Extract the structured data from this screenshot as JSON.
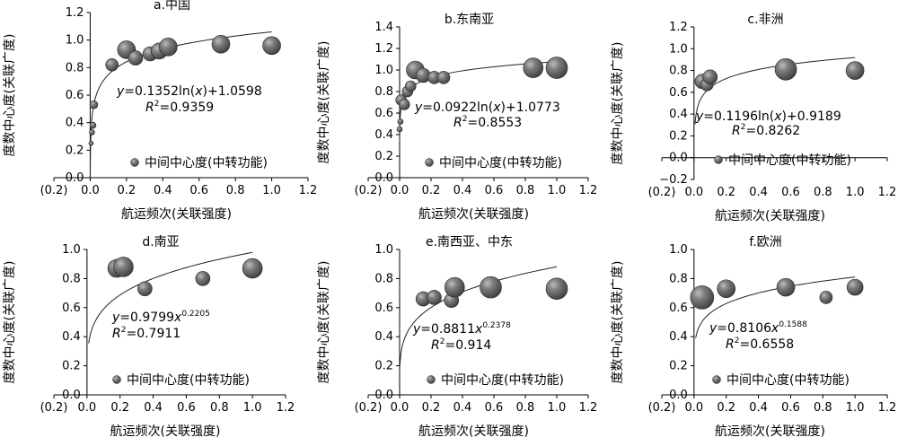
{
  "chart_data": [
    {
      "id": "a",
      "type": "scatter",
      "title": "a.中国",
      "xlabel": "航运频次(关联强度)",
      "ylabel": "度数中心度(关联广度)",
      "xticks": [
        "(0.2)",
        "0.0",
        "0.2",
        "0.4",
        "0.6",
        "0.8",
        "1.0",
        "1.2"
      ],
      "yticks": [
        "0.0",
        "0.2",
        "0.4",
        "0.6",
        "0.8",
        "1.0",
        "1.2"
      ],
      "xlim": [
        -0.2,
        1.2
      ],
      "ylim": [
        0,
        1.2
      ],
      "legend": "中间中心度(中转功能)",
      "equation": {
        "pre": "y",
        "mid": "=0.1352ln(",
        "var": "x",
        "post": ")+1.0598"
      },
      "r2": {
        "label": "R",
        "sup": "2",
        "value": "=0.9359"
      },
      "fit": {
        "kind": "log",
        "a": 0.1352,
        "b": 1.0598,
        "xmin": 0.0003,
        "xmax": 1.0
      },
      "points": [
        {
          "x": 0.0,
          "y": 0.0,
          "r": 1.2
        },
        {
          "x": 0.005,
          "y": 0.25,
          "r": 2.5
        },
        {
          "x": 0.01,
          "y": 0.33,
          "r": 3
        },
        {
          "x": 0.015,
          "y": 0.38,
          "r": 3.5
        },
        {
          "x": 0.02,
          "y": 0.53,
          "r": 4.5
        },
        {
          "x": 0.12,
          "y": 0.82,
          "r": 7
        },
        {
          "x": 0.2,
          "y": 0.93,
          "r": 10
        },
        {
          "x": 0.25,
          "y": 0.87,
          "r": 8
        },
        {
          "x": 0.33,
          "y": 0.9,
          "r": 8
        },
        {
          "x": 0.38,
          "y": 0.92,
          "r": 9
        },
        {
          "x": 0.43,
          "y": 0.95,
          "r": 10
        },
        {
          "x": 0.72,
          "y": 0.97,
          "r": 10
        },
        {
          "x": 1.0,
          "y": 0.96,
          "r": 10
        }
      ]
    },
    {
      "id": "b",
      "type": "scatter",
      "title": "b.东南亚",
      "xlabel": "航运频次(关联强度)",
      "ylabel": "度数中心度(关联广度)",
      "xticks": [
        "(0.2)",
        "0.0",
        "0.2",
        "0.4",
        "0.6",
        "0.8",
        "1.0",
        "1.2"
      ],
      "yticks": [
        "0.0",
        "0.2",
        "0.4",
        "0.6",
        "0.8",
        "1.0",
        "1.2",
        "1.4"
      ],
      "xlim": [
        -0.2,
        1.2
      ],
      "ylim": [
        0,
        1.4
      ],
      "legend": "中间中心度(中转功能)",
      "equation": {
        "pre": "y",
        "mid": "=0.0922ln(",
        "var": "x",
        "post": ")+1.0773"
      },
      "r2": {
        "label": "R",
        "sup": "2",
        "value": "=0.8553"
      },
      "fit": {
        "kind": "log",
        "a": 0.0922,
        "b": 1.0773,
        "xmin": 0.0003,
        "xmax": 1.0
      },
      "points": [
        {
          "x": 0.0,
          "y": 0.0,
          "r": 1.2
        },
        {
          "x": 0.0,
          "y": 0.45,
          "r": 3
        },
        {
          "x": 0.005,
          "y": 0.52,
          "r": 3
        },
        {
          "x": 0.01,
          "y": 0.72,
          "r": 6
        },
        {
          "x": 0.03,
          "y": 0.68,
          "r": 6
        },
        {
          "x": 0.05,
          "y": 0.8,
          "r": 6
        },
        {
          "x": 0.07,
          "y": 0.85,
          "r": 6
        },
        {
          "x": 0.1,
          "y": 1.0,
          "r": 10
        },
        {
          "x": 0.15,
          "y": 0.95,
          "r": 8
        },
        {
          "x": 0.22,
          "y": 0.93,
          "r": 7
        },
        {
          "x": 0.28,
          "y": 0.93,
          "r": 7
        },
        {
          "x": 0.85,
          "y": 1.02,
          "r": 11
        },
        {
          "x": 1.0,
          "y": 1.02,
          "r": 12
        }
      ]
    },
    {
      "id": "c",
      "type": "scatter",
      "title": "c.非洲",
      "xlabel": "航运频次(关联强度)",
      "ylabel": "度数中心度(关联广度)",
      "xticks": [
        "(0.2)",
        "0.0",
        "0.2",
        "0.4",
        "0.6",
        "0.8",
        "1.0",
        "1.2"
      ],
      "yticks": [
        "−0.2",
        "0.0",
        "0.2",
        "0.4",
        "0.6",
        "0.8",
        "1.0",
        "1.2"
      ],
      "xlim": [
        -0.2,
        1.2
      ],
      "ylim": [
        -0.2,
        1.2
      ],
      "legend": "中间中心度(中转功能)",
      "equation": {
        "pre": "y",
        "mid": "=0.1196ln(",
        "var": "x",
        "post": ")+0.9189"
      },
      "r2": {
        "label": "R",
        "sup": "2",
        "value": "=0.8262"
      },
      "fit": {
        "kind": "log",
        "a": 0.1196,
        "b": 0.9189,
        "xmin": 0.006,
        "xmax": 1.0
      },
      "points": [
        {
          "x": 0.05,
          "y": 0.7,
          "r": 8
        },
        {
          "x": 0.08,
          "y": 0.67,
          "r": 7
        },
        {
          "x": 0.1,
          "y": 0.74,
          "r": 8
        },
        {
          "x": 0.57,
          "y": 0.81,
          "r": 12
        },
        {
          "x": 1.0,
          "y": 0.8,
          "r": 10
        }
      ]
    },
    {
      "id": "d",
      "type": "scatter",
      "title": "d.南亚",
      "xlabel": "航运频次(关联强度)",
      "ylabel": "度数中心度(关联广度)",
      "xticks": [
        "(0.2)",
        "0.0",
        "0.2",
        "0.4",
        "0.6",
        "0.8",
        "1.0",
        "1.2"
      ],
      "yticks": [
        "0.0",
        "0.2",
        "0.4",
        "0.6",
        "0.8",
        "1.0"
      ],
      "xlim": [
        -0.2,
        1.2
      ],
      "ylim": [
        0,
        1.0
      ],
      "legend": "中间中心度(中转功能)",
      "equation": {
        "pre": "y",
        "mid": "=0.9799",
        "var": "x",
        "sup": "0.2205"
      },
      "r2": {
        "label": "R",
        "sup": "2",
        "value": "=0.7911"
      },
      "fit": {
        "kind": "power",
        "a": 0.9799,
        "b": 0.2205,
        "xmin": 0.01,
        "xmax": 1.0
      },
      "points": [
        {
          "x": 0.18,
          "y": 0.87,
          "r": 10
        },
        {
          "x": 0.22,
          "y": 0.88,
          "r": 11
        },
        {
          "x": 0.35,
          "y": 0.73,
          "r": 8
        },
        {
          "x": 0.7,
          "y": 0.8,
          "r": 8
        },
        {
          "x": 1.0,
          "y": 0.87,
          "r": 11
        }
      ]
    },
    {
      "id": "e",
      "type": "scatter",
      "title": "e.南西亚、中东",
      "xlabel": "航运频次(关联强度)",
      "ylabel": "度数中心度(关联广度)",
      "xticks": [
        "(0.2)",
        "0.0",
        "0.2",
        "0.4",
        "0.6",
        "0.8",
        "1.0",
        "1.2"
      ],
      "yticks": [
        "0.0",
        "0.2",
        "0.4",
        "0.6",
        "0.8",
        "1.0"
      ],
      "xlim": [
        -0.2,
        1.2
      ],
      "ylim": [
        0,
        1.0
      ],
      "legend": "中间中心度(中转功能)",
      "equation": {
        "pre": "y",
        "mid": "=0.8811",
        "var": "x",
        "sup": "0.2378"
      },
      "r2": {
        "label": "R",
        "sup": "2",
        "value": "=0.914"
      },
      "fit": {
        "kind": "power",
        "a": 0.8811,
        "b": 0.2378,
        "xmin": 0.002,
        "xmax": 1.0
      },
      "points": [
        {
          "x": 0.15,
          "y": 0.66,
          "r": 8
        },
        {
          "x": 0.22,
          "y": 0.67,
          "r": 8
        },
        {
          "x": 0.33,
          "y": 0.65,
          "r": 8
        },
        {
          "x": 0.35,
          "y": 0.74,
          "r": 11
        },
        {
          "x": 0.58,
          "y": 0.74,
          "r": 12
        },
        {
          "x": 1.0,
          "y": 0.73,
          "r": 12
        }
      ]
    },
    {
      "id": "f",
      "type": "scatter",
      "title": "f.欧洲",
      "xlabel": "航运频次(关联强度)",
      "ylabel": "度数中心度(关联广度)",
      "xticks": [
        "(0.2)",
        "0.0",
        "0.2",
        "0.4",
        "0.6",
        "0.8",
        "1.0",
        "1.2"
      ],
      "yticks": [
        "0.0",
        "0.2",
        "0.4",
        "0.6",
        "0.8",
        "1.0"
      ],
      "xlim": [
        -0.2,
        1.2
      ],
      "ylim": [
        0,
        1.0
      ],
      "legend": "中间中心度(中转功能)",
      "equation": {
        "pre": "y",
        "mid": "=0.8106",
        "var": "x",
        "sup": "0.1588"
      },
      "r2": {
        "label": "R",
        "sup": "2",
        "value": "=0.6558"
      },
      "fit": {
        "kind": "power",
        "a": 0.8106,
        "b": 0.1588,
        "xmin": 0.01,
        "xmax": 1.0
      },
      "points": [
        {
          "x": 0.05,
          "y": 0.67,
          "r": 13
        },
        {
          "x": 0.2,
          "y": 0.73,
          "r": 10
        },
        {
          "x": 0.57,
          "y": 0.74,
          "r": 10
        },
        {
          "x": 0.82,
          "y": 0.67,
          "r": 7
        },
        {
          "x": 1.0,
          "y": 0.74,
          "r": 9
        }
      ]
    }
  ]
}
